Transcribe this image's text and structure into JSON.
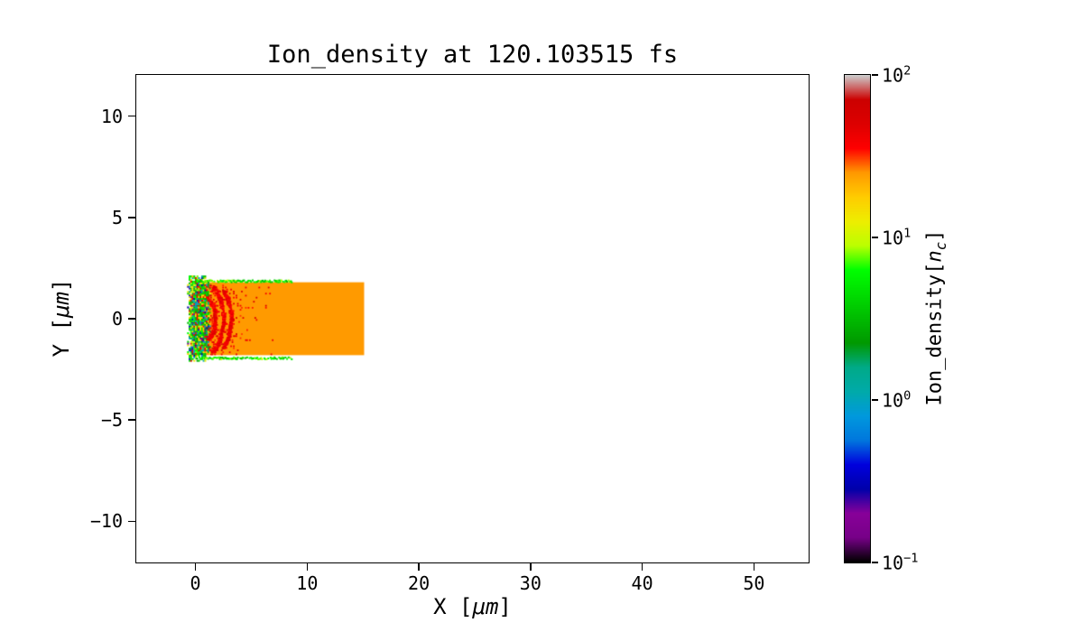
{
  "figure": {
    "background_color": "#ffffff",
    "axes_color": "#000000"
  },
  "chart_data": {
    "type": "heatmap",
    "title": "Ion_density at 120.103515 fs",
    "time_fs": 120.103515,
    "x_axis": {
      "label_prefix": "X [",
      "label_unit": "μm",
      "label_suffix": "]",
      "lim": [
        -5.3,
        54.9
      ],
      "tick_values": [
        0,
        10,
        20,
        30,
        40,
        50
      ],
      "tick_labels": [
        "0",
        "10",
        "20",
        "30",
        "40",
        "50"
      ]
    },
    "y_axis": {
      "label_prefix": "Y [",
      "label_unit": "μm",
      "label_suffix": "]",
      "lim": [
        -12.04,
        12.04
      ],
      "tick_values": [
        -10,
        -5,
        0,
        5,
        10
      ],
      "tick_labels": [
        "−10",
        "−5",
        "0",
        "5",
        "10"
      ]
    },
    "colorbar": {
      "label_prefix": "Ion_density[",
      "label_math": "n",
      "label_sub": "c",
      "label_suffix": "]",
      "scale": "log",
      "range_nc": [
        0.1,
        100
      ],
      "tick_values": [
        100,
        10,
        1,
        0.1
      ],
      "tick_labels": [
        {
          "base": "10",
          "exp": "2"
        },
        {
          "base": "10",
          "exp": "1"
        },
        {
          "base": "10",
          "exp": "0"
        },
        {
          "base": "10",
          "exp": "−1"
        }
      ],
      "colormap": "nipy_spectral",
      "colormap_stops": [
        [
          0.0,
          "#000000"
        ],
        [
          0.05,
          "#770088"
        ],
        [
          0.1,
          "#880099"
        ],
        [
          0.15,
          "#0000AA"
        ],
        [
          0.2,
          "#0000DD"
        ],
        [
          0.25,
          "#0077DD"
        ],
        [
          0.3,
          "#0099DD"
        ],
        [
          0.35,
          "#00AAAA"
        ],
        [
          0.4,
          "#00AA88"
        ],
        [
          0.45,
          "#009900"
        ],
        [
          0.5,
          "#00BB00"
        ],
        [
          0.55,
          "#00DD00"
        ],
        [
          0.6,
          "#00FF00"
        ],
        [
          0.65,
          "#BBFF00"
        ],
        [
          0.7,
          "#EEEE00"
        ],
        [
          0.75,
          "#FFCC00"
        ],
        [
          0.8,
          "#FF9900"
        ],
        [
          0.85,
          "#FF0000"
        ],
        [
          0.9,
          "#DD0000"
        ],
        [
          0.95,
          "#CC0000"
        ],
        [
          1.0,
          "#CCCCCC"
        ]
      ]
    },
    "heatmap": {
      "description": "Uniform ion slab (orange, ~25 nc) with turbulent irradiated front surface showing mixed densities spanning the full color scale",
      "slab": {
        "x_range_um": [
          0,
          15.1
        ],
        "y_range_um": [
          -1.8,
          1.8
        ],
        "density_nc": 25
      },
      "front": {
        "x_range_um": [
          -0.75,
          2.7
        ],
        "y_range_um": [
          -2.12,
          2.12
        ],
        "density_range_nc": [
          0.1,
          100
        ]
      },
      "red_speckle_x_max_um": 8.3,
      "edge_speckle_x_max_um": 8.6
    }
  }
}
